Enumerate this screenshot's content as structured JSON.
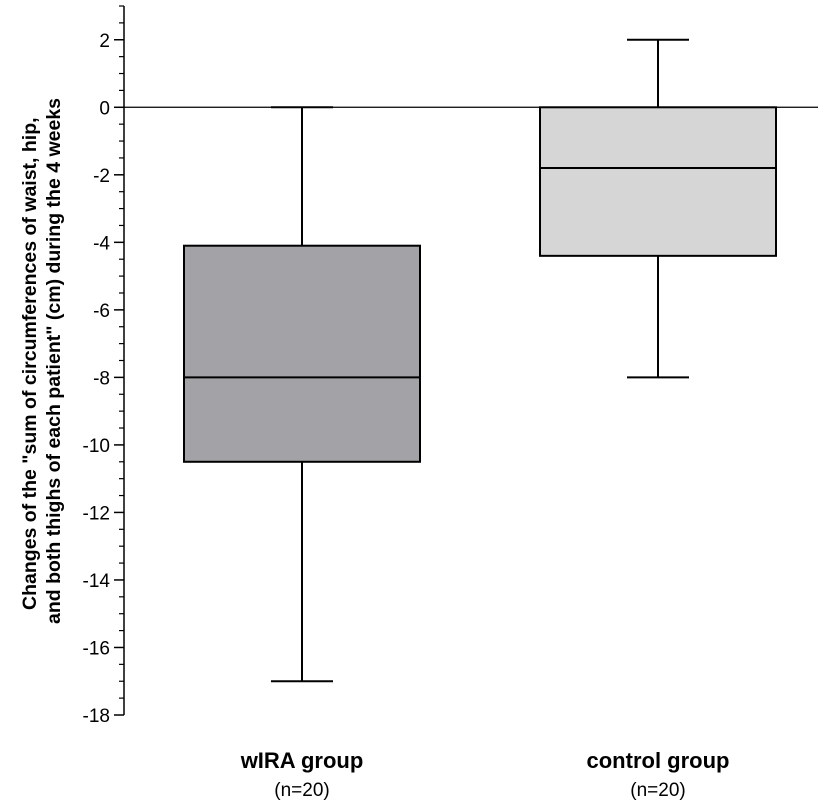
{
  "chart_data": {
    "type": "box",
    "ylabel_line1": "Changes of the \"sum of circumferences of waist, hip,",
    "ylabel_line2": "and both thighs of each patient\" (cm) during the 4 weeks",
    "ylim": [
      -18,
      3
    ],
    "y_ticks": [
      2,
      0,
      -2,
      -4,
      -6,
      -8,
      -10,
      -12,
      -14,
      -16,
      -18
    ],
    "y_tick_labels": [
      "2",
      "0",
      "-2",
      "-4",
      "-6",
      "-8",
      "-10",
      "-12",
      "-14",
      "-16",
      "-18"
    ],
    "reference_line": 0,
    "grid": false,
    "groups": [
      {
        "name": "wIRA group",
        "n_label": "(n=20)",
        "whisker_low": -17,
        "q1": -10.5,
        "median": -8,
        "q3": -4.1,
        "whisker_high": 0,
        "color": "#a3a2a7"
      },
      {
        "name": "control group",
        "n_label": "(n=20)",
        "whisker_low": -8,
        "q1": -4.4,
        "median": -1.8,
        "q3": 0,
        "whisker_high": 2,
        "color": "#d6d6d6"
      }
    ]
  }
}
